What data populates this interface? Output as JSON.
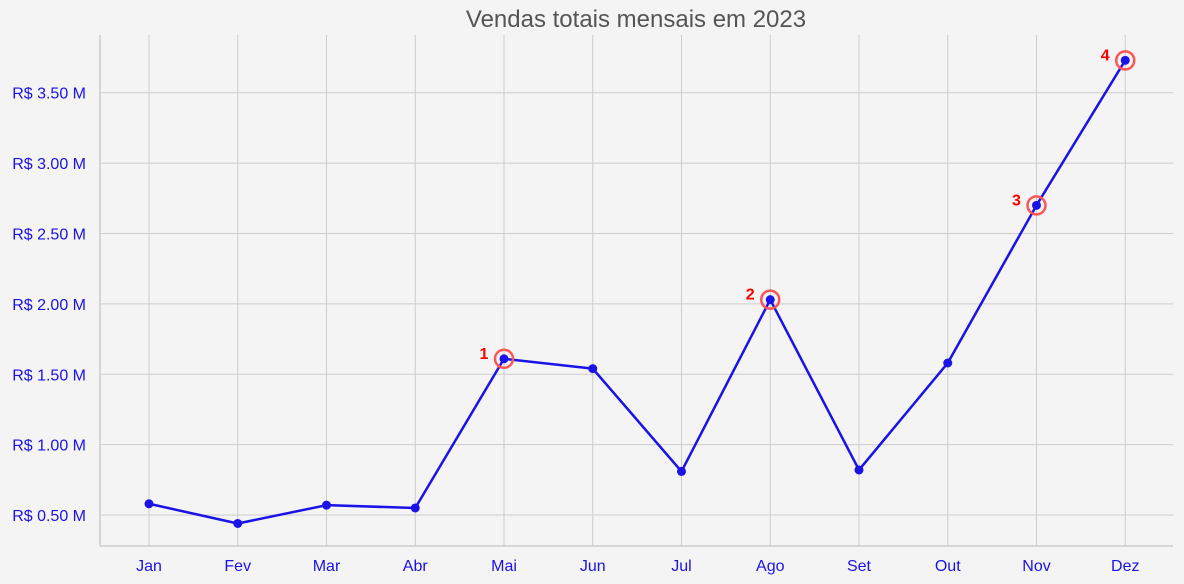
{
  "chart_data": {
    "type": "line",
    "title": "Vendas totais mensais em 2023",
    "xlabel": "",
    "ylabel": "",
    "categories": [
      "Jan",
      "Fev",
      "Mar",
      "Abr",
      "Mai",
      "Jun",
      "Jul",
      "Ago",
      "Set",
      "Out",
      "Nov",
      "Dez"
    ],
    "series": [
      {
        "values": [
          0.58,
          0.44,
          0.57,
          0.55,
          1.61,
          1.54,
          0.81,
          2.03,
          0.82,
          1.58,
          2.7,
          3.73
        ]
      }
    ],
    "y_ticks": [
      0.5,
      1.0,
      1.5,
      2.0,
      2.5,
      3.0,
      3.5
    ],
    "y_tick_labels": [
      "R$ 0.50 M",
      "R$ 1.00 M",
      "R$ 1.50 M",
      "R$ 2.00 M",
      "R$ 2.50 M",
      "R$ 3.00 M",
      "R$ 3.50 M"
    ],
    "ylim": [
      0.28,
      3.91
    ],
    "grid": true,
    "annotations": [
      {
        "label": "1",
        "category": "Mai",
        "value": 1.61
      },
      {
        "label": "2",
        "category": "Ago",
        "value": 2.03
      },
      {
        "label": "3",
        "category": "Nov",
        "value": 2.7
      },
      {
        "label": "4",
        "category": "Dez",
        "value": 3.73
      }
    ],
    "colors": {
      "line": "#1a12e6",
      "marker": "#1a12e6",
      "tick_labels": "#1a12e6",
      "annotation": "#ff0000",
      "highlight_ring": "#ff5555",
      "grid": "#cccccc",
      "axis": "#cccccc",
      "title": "#555555",
      "background": "#f4f4f4"
    }
  }
}
